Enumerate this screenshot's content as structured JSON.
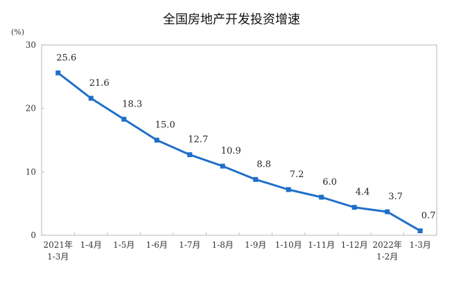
{
  "chart_data": {
    "type": "line",
    "title": "全国房地产开发投资增速",
    "ylabel": "(%)",
    "xlabel": "",
    "ylim": [
      0,
      30
    ],
    "yticks": [
      0,
      10,
      20,
      30
    ],
    "grid": false,
    "legend": null,
    "categories": [
      [
        "2021年",
        "1-3月"
      ],
      [
        "1-4月"
      ],
      [
        "1-5月"
      ],
      [
        "1-6月"
      ],
      [
        "1-7月"
      ],
      [
        "1-8月"
      ],
      [
        "1-9月"
      ],
      [
        "1-10月"
      ],
      [
        "1-11月"
      ],
      [
        "1-12月"
      ],
      [
        "2022年",
        "1-2月"
      ],
      [
        "1-3月"
      ]
    ],
    "series": [
      {
        "name": "全国房地产开发投资增速",
        "color": "#1f6fc9",
        "values": [
          25.6,
          21.6,
          18.3,
          15.0,
          12.7,
          10.9,
          8.8,
          7.2,
          6.0,
          4.4,
          3.7,
          0.7
        ],
        "labels": [
          "25.6",
          "21.6",
          "18.3",
          "15.0",
          "12.7",
          "10.9",
          "8.8",
          "7.2",
          "6.0",
          "4.4",
          "3.7",
          "0.7"
        ]
      }
    ]
  },
  "header": {
    "title": "全国房地产开发投资增速",
    "unit": "(%)"
  }
}
